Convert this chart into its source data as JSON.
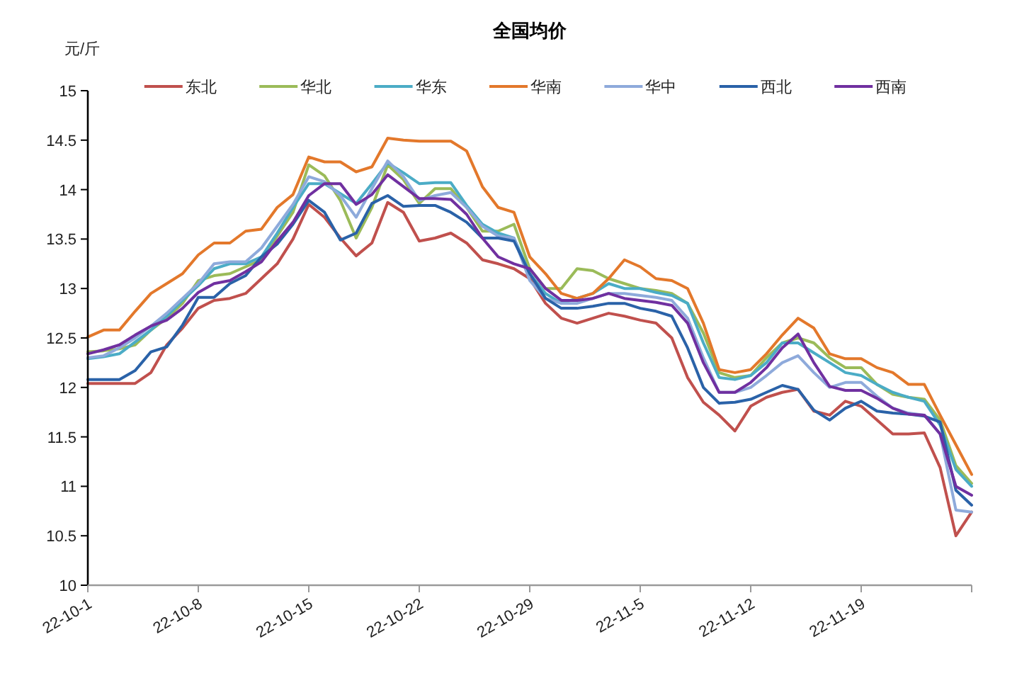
{
  "chart_data": {
    "type": "line",
    "title": "全国均价",
    "ylabel": "元/斤",
    "x": [
      "--10-01",
      "--10-02",
      "--10-03",
      "--10-04",
      "--10-05",
      "--10-06",
      "--10-07",
      "--10-08",
      "--10-09",
      "--10-10",
      "--10-11",
      "--10-12",
      "--10-13",
      "--10-14",
      "--10-15",
      "--10-16",
      "--10-17",
      "--10-18",
      "--10-19",
      "--10-20",
      "--10-21",
      "--10-22",
      "--10-23",
      "--10-24",
      "--10-25",
      "--10-26",
      "--10-27",
      "--10-28",
      "--10-29",
      "--10-30",
      "--10-31",
      "--11-01",
      "--11-02",
      "--11-03",
      "--11-04",
      "--11-05",
      "--11-06",
      "--11-07",
      "--11-08",
      "--11-09",
      "--11-10",
      "--11-11",
      "--11-12",
      "--11-13",
      "--11-14",
      "--11-15",
      "--11-16",
      "--11-17",
      "--11-18",
      "--11-19",
      "--11-20",
      "--11-21",
      "--11-22",
      "--11-23",
      "--11-24",
      "--11-25",
      "--11-26"
    ],
    "series": [
      {
        "name": "东北",
        "color": "#c0504d",
        "values": [
          12.04,
          12.04,
          12.04,
          12.04,
          12.15,
          12.43,
          12.6,
          12.8,
          12.88,
          12.9,
          12.95,
          13.1,
          13.25,
          13.5,
          13.85,
          13.72,
          13.51,
          13.33,
          13.46,
          13.87,
          13.77,
          13.48,
          13.51,
          13.56,
          13.46,
          13.29,
          13.25,
          13.2,
          13.1,
          12.85,
          12.7,
          12.65,
          12.7,
          12.75,
          12.72,
          12.68,
          12.65,
          12.5,
          12.1,
          11.85,
          11.72,
          11.56,
          11.81,
          11.9,
          11.95,
          11.98,
          11.76,
          11.72,
          11.86,
          11.81,
          11.67,
          11.53,
          11.53,
          11.54,
          11.19,
          10.5,
          10.74
        ]
      },
      {
        "name": "华北",
        "color": "#9bbb59",
        "values": [
          12.36,
          12.37,
          12.39,
          12.43,
          12.58,
          12.7,
          12.85,
          13.08,
          13.13,
          13.15,
          13.22,
          13.29,
          13.53,
          13.77,
          14.25,
          14.14,
          13.89,
          13.51,
          13.82,
          14.25,
          14.1,
          13.86,
          14.01,
          14.01,
          13.82,
          13.58,
          13.58,
          13.65,
          13.2,
          13.0,
          13.0,
          13.2,
          13.18,
          13.1,
          13.05,
          13.0,
          12.98,
          12.95,
          12.85,
          12.55,
          12.15,
          12.1,
          12.12,
          12.3,
          12.45,
          12.5,
          12.45,
          12.3,
          12.2,
          12.2,
          12.03,
          11.93,
          11.9,
          11.88,
          11.67,
          11.21,
          11.03
        ]
      },
      {
        "name": "华东",
        "color": "#4bacc6",
        "values": [
          12.29,
          12.31,
          12.34,
          12.46,
          12.58,
          12.72,
          12.88,
          13.03,
          13.2,
          13.25,
          13.25,
          13.32,
          13.56,
          13.82,
          14.06,
          14.06,
          13.96,
          13.86,
          14.06,
          14.27,
          14.17,
          14.06,
          14.07,
          14.07,
          13.84,
          13.65,
          13.56,
          13.51,
          13.15,
          12.95,
          12.85,
          12.9,
          12.95,
          13.05,
          13.0,
          13.0,
          12.96,
          12.93,
          12.85,
          12.45,
          12.1,
          12.08,
          12.12,
          12.25,
          12.45,
          12.45,
          12.35,
          12.25,
          12.15,
          12.12,
          12.03,
          11.95,
          11.9,
          11.86,
          11.62,
          11.17,
          11.0
        ]
      },
      {
        "name": "华南",
        "color": "#e3782b",
        "values": [
          12.51,
          12.58,
          12.58,
          12.77,
          12.95,
          13.05,
          13.15,
          13.34,
          13.46,
          13.46,
          13.58,
          13.6,
          13.82,
          13.95,
          14.33,
          14.28,
          14.28,
          14.18,
          14.23,
          14.52,
          14.5,
          14.49,
          14.49,
          14.49,
          14.39,
          14.03,
          13.82,
          13.77,
          13.32,
          13.15,
          12.95,
          12.9,
          12.95,
          13.1,
          13.29,
          13.22,
          13.1,
          13.08,
          13.0,
          12.65,
          12.18,
          12.15,
          12.18,
          12.34,
          12.53,
          12.7,
          12.6,
          12.34,
          12.29,
          12.29,
          12.2,
          12.15,
          12.03,
          12.03,
          11.72,
          11.42,
          11.12
        ]
      },
      {
        "name": "华中",
        "color": "#8eaadb",
        "values": [
          12.3,
          12.32,
          12.4,
          12.5,
          12.62,
          12.75,
          12.9,
          13.05,
          13.25,
          13.27,
          13.27,
          13.41,
          13.63,
          13.85,
          14.13,
          14.08,
          13.94,
          13.72,
          14.01,
          14.29,
          14.13,
          13.89,
          13.94,
          13.97,
          13.82,
          13.63,
          13.53,
          13.51,
          13.08,
          12.9,
          12.85,
          12.85,
          12.9,
          12.95,
          12.95,
          12.93,
          12.91,
          12.88,
          12.7,
          12.3,
          11.95,
          11.95,
          12.0,
          12.12,
          12.25,
          12.32,
          12.15,
          12.0,
          12.05,
          12.05,
          11.91,
          11.79,
          11.74,
          11.72,
          11.53,
          10.76,
          10.74
        ]
      },
      {
        "name": "西北",
        "color": "#2a62a8",
        "values": [
          12.08,
          12.08,
          12.08,
          12.17,
          12.36,
          12.41,
          12.63,
          12.91,
          12.91,
          13.05,
          13.13,
          13.32,
          13.45,
          13.65,
          13.89,
          13.77,
          13.49,
          13.56,
          13.86,
          13.94,
          13.83,
          13.84,
          13.84,
          13.77,
          13.67,
          13.51,
          13.51,
          13.48,
          13.15,
          12.9,
          12.8,
          12.8,
          12.82,
          12.85,
          12.85,
          12.8,
          12.77,
          12.72,
          12.4,
          12.0,
          11.84,
          11.85,
          11.88,
          11.95,
          12.02,
          11.98,
          11.77,
          11.67,
          11.79,
          11.86,
          11.76,
          11.74,
          11.73,
          11.71,
          11.65,
          10.96,
          10.81
        ]
      },
      {
        "name": "西南",
        "color": "#7030a0",
        "values": [
          12.34,
          12.38,
          12.43,
          12.53,
          12.62,
          12.68,
          12.8,
          12.96,
          13.05,
          13.08,
          13.17,
          13.27,
          13.48,
          13.67,
          13.94,
          14.06,
          14.06,
          13.85,
          13.95,
          14.15,
          14.03,
          13.91,
          13.91,
          13.9,
          13.75,
          13.51,
          13.32,
          13.25,
          13.2,
          13.0,
          12.88,
          12.88,
          12.9,
          12.95,
          12.9,
          12.88,
          12.86,
          12.83,
          12.65,
          12.25,
          11.95,
          11.95,
          12.05,
          12.2,
          12.4,
          12.54,
          12.25,
          12.01,
          11.97,
          11.97,
          11.89,
          11.79,
          11.73,
          11.72,
          11.53,
          11.0,
          10.91
        ]
      }
    ],
    "xlim": [
      "--10-01",
      "--11-26"
    ],
    "xticks": [
      {
        "value": "--10-01",
        "label": "22-10-1"
      },
      {
        "value": "--10-08",
        "label": "22-10-8"
      },
      {
        "value": "--10-15",
        "label": "22-10-15"
      },
      {
        "value": "--10-22",
        "label": "22-10-22"
      },
      {
        "value": "--10-29",
        "label": "22-10-29"
      },
      {
        "value": "--11-05",
        "label": "22-11-5"
      },
      {
        "value": "--11-12",
        "label": "22-11-12"
      },
      {
        "value": "--11-19",
        "label": "22-11-19"
      },
      {
        "value": "--11-26",
        "label": null
      }
    ],
    "ylim": [
      10,
      15
    ],
    "yticks": [
      10,
      10.5,
      11,
      11.5,
      12,
      12.5,
      13,
      13.5,
      14,
      14.5,
      15
    ],
    "legend": "top",
    "grid": false
  }
}
